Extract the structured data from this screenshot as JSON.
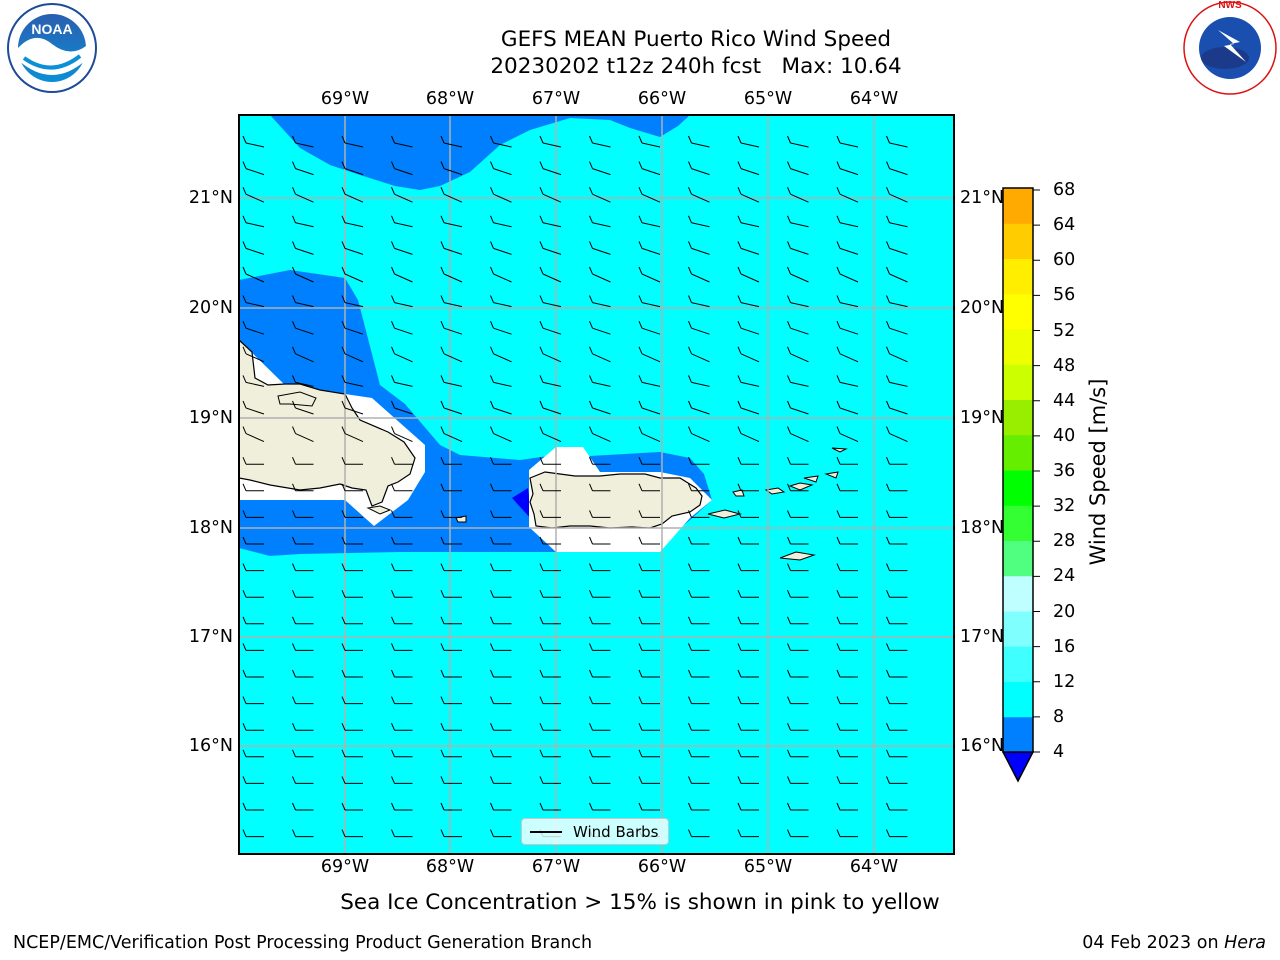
{
  "header": {
    "title": "GEFS MEAN Puerto Rico Wind Speed",
    "subtitle": "20230202 t12z 240h fcst   Max: 10.64"
  },
  "logos": {
    "left": "NOAA",
    "right": "NATIONAL WEATHER SERVICE"
  },
  "map": {
    "lon_labels": [
      "69°W",
      "68°W",
      "67°W",
      "66°W",
      "65°W",
      "64°W"
    ],
    "lat_labels": [
      "21°N",
      "20°N",
      "19°N",
      "18°N",
      "17°N",
      "16°N"
    ],
    "legend_label": "Wind Barbs",
    "colors": {
      "sea": "#00ffff",
      "band_4_8": "#0080ff",
      "below_4": "#0000ff",
      "land": "#efefdb",
      "grid": "#b0b0b0"
    }
  },
  "colorbar": {
    "ticks": [
      "68",
      "64",
      "60",
      "56",
      "52",
      "48",
      "44",
      "40",
      "36",
      "32",
      "28",
      "24",
      "20",
      "16",
      "12",
      "8",
      "4"
    ],
    "colors": [
      "#0000ff",
      "#0080ff",
      "#00ffff",
      "#40ffff",
      "#80ffff",
      "#c0ffff",
      "#50ff80",
      "#33ff33",
      "#00ff00",
      "#66ee00",
      "#99ee00",
      "#ccff00",
      "#eeff00",
      "#ffff00",
      "#ffee00",
      "#ffcc00",
      "#ffaa00",
      "#ff8800",
      "#ff6600",
      "#ff3300",
      "#ff0000"
    ],
    "label": "Wind Speed [m/s]"
  },
  "footer": {
    "note": "Sea Ice Concentration > 15% is shown in pink to yellow",
    "credit": "NCEP/EMC/Verification Post Processing Product Generation Branch",
    "date": "04 Feb 2023 on",
    "host": "Hera"
  }
}
